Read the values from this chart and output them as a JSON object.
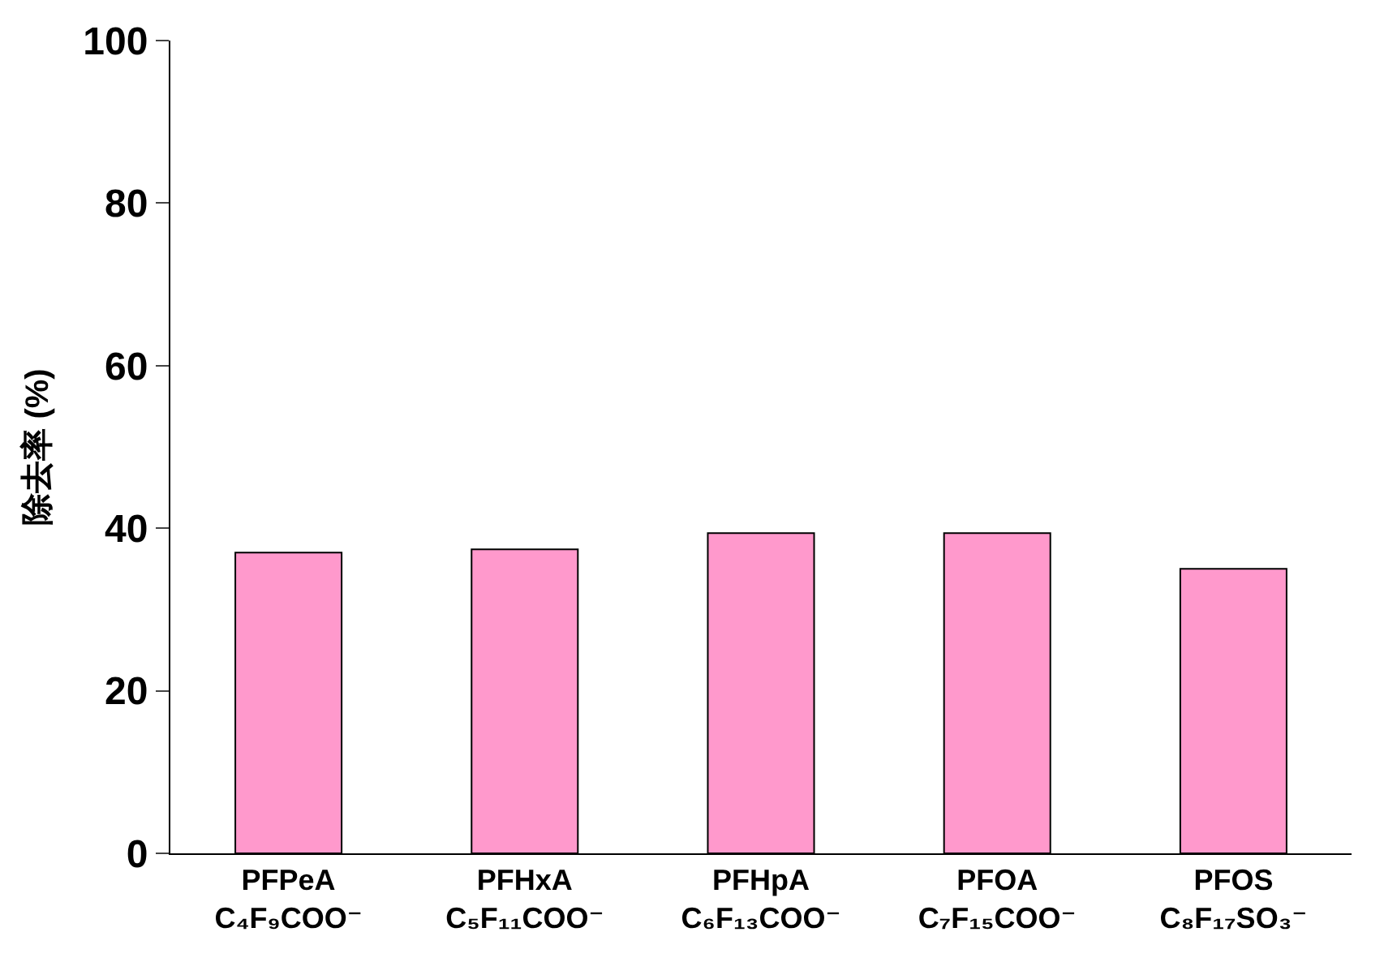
{
  "chart_data": {
    "type": "bar",
    "ylabel": "除去率 (%)",
    "categories": [
      "PFPeA\nC₄F₉COO⁻",
      "PFHxA\nC₅F₁₁COO⁻",
      "PFHpA\nC₆F₁₃COO⁻",
      "PFOA\nC₇F₁₅COO⁻",
      "PFOS\nC₈F₁₇SO₃⁻"
    ],
    "values": [
      37,
      37.4,
      39.4,
      39.4,
      35
    ],
    "color": "#ff99cc",
    "ylim": [
      0,
      100
    ],
    "yticks": [
      0,
      20,
      40,
      60,
      80,
      100
    ]
  }
}
